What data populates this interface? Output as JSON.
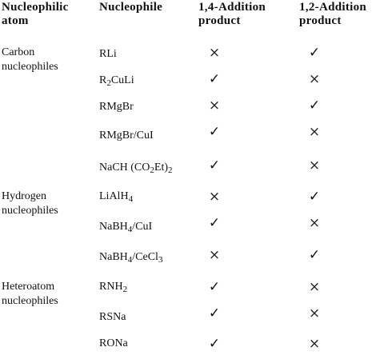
{
  "headers": {
    "atom": [
      "Nucleophilic",
      "atom"
    ],
    "nucleophile": "Nucleophile",
    "addition14": [
      "1,4-Addition",
      "product"
    ],
    "addition12": [
      "1,2-Addition",
      "product"
    ]
  },
  "marks": {
    "yes": "✓",
    "no": "×"
  },
  "groups": [
    {
      "atom": [
        "Carbon",
        "nucleophiles"
      ],
      "rows": [
        {
          "nuc": [
            "RLi"
          ],
          "p14": "no",
          "p12": "yes"
        },
        {
          "nuc": [
            "R",
            "2",
            "CuLi"
          ],
          "p14": "yes",
          "p12": "no"
        },
        {
          "nuc": [
            "RMgBr"
          ],
          "p14": "no",
          "p12": "yes"
        },
        {
          "nuc": [
            "RMgBr/CuI"
          ],
          "p14": "yes",
          "p12": "no"
        },
        {
          "nuc": [
            "NaCH (CO",
            "2",
            "Et)",
            "2",
            ""
          ],
          "p14": "yes",
          "p12": "no"
        }
      ]
    },
    {
      "atom": [
        "Hydrogen",
        "nucleophiles"
      ],
      "rows": [
        {
          "nuc": [
            "LiAlH",
            "4",
            ""
          ],
          "p14": "no",
          "p12": "yes"
        },
        {
          "nuc": [
            "NaBH",
            "4",
            "/CuI"
          ],
          "p14": "yes",
          "p12": "no"
        },
        {
          "nuc": [
            "NaBH",
            "4",
            "/CeCl",
            "3",
            ""
          ],
          "p14": "no",
          "p12": "yes"
        }
      ]
    },
    {
      "atom": [
        "Heteroatom",
        "nucleophiles"
      ],
      "rows": [
        {
          "nuc": [
            "RNH",
            "2",
            ""
          ],
          "p14": "yes",
          "p12": "no"
        },
        {
          "nuc": [
            "RSNa"
          ],
          "p14": "yes",
          "p12": "no"
        },
        {
          "nuc": [
            "RONa"
          ],
          "p14": "yes",
          "p12": "no"
        }
      ]
    }
  ]
}
